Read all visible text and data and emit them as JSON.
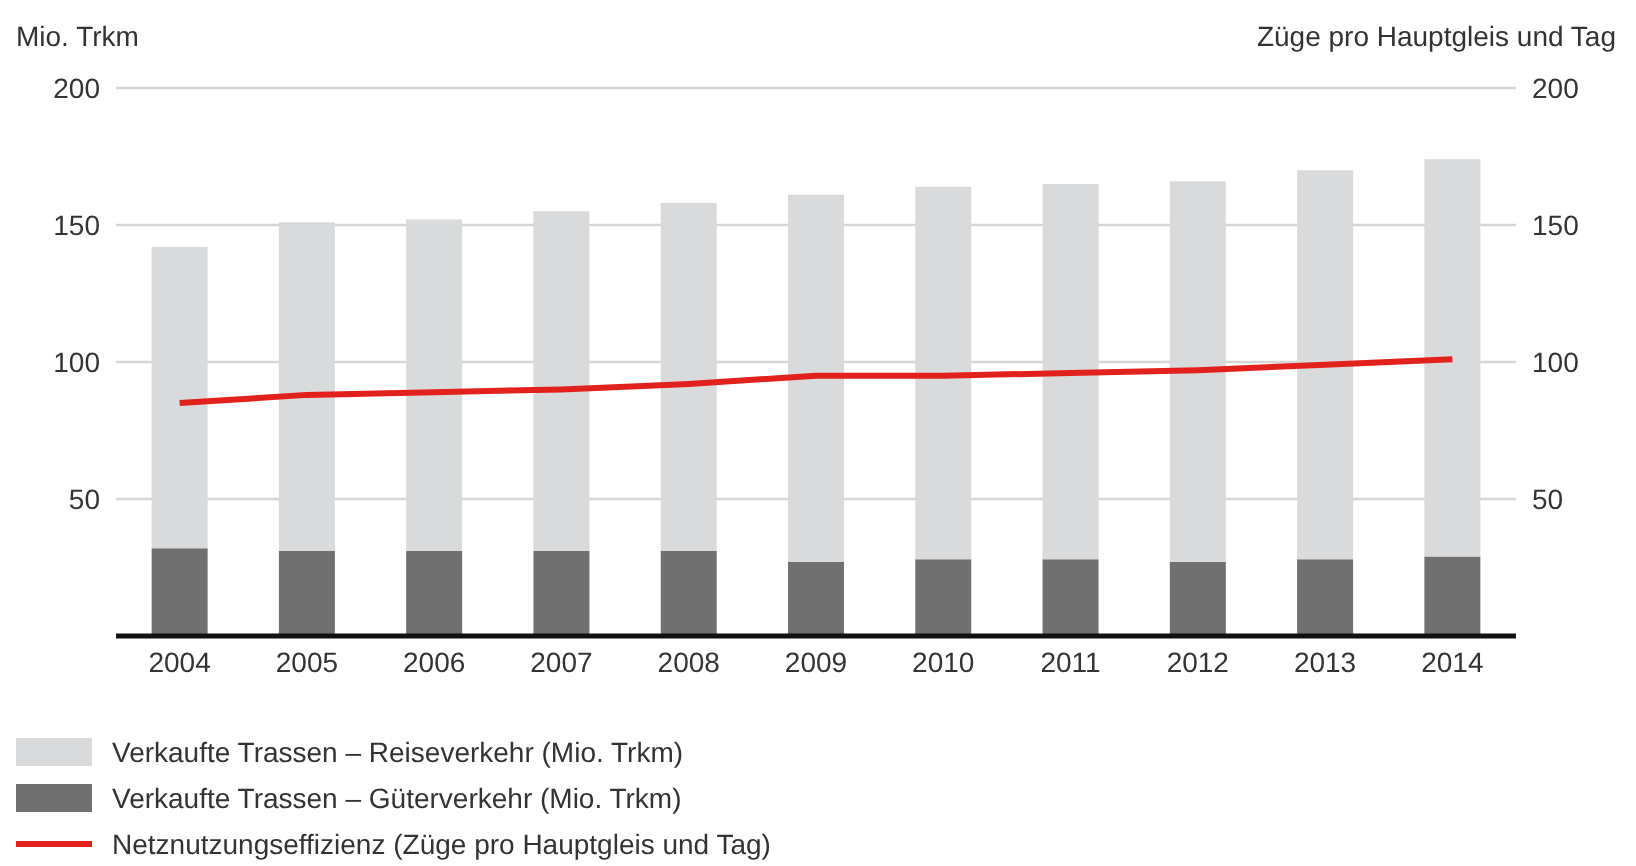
{
  "chart_data": {
    "type": "bar",
    "stacked": true,
    "ylabel": "Mio. Trkm",
    "y2label": "Züge pro Hauptgleis und Tag",
    "categories": [
      "2004",
      "2005",
      "2006",
      "2007",
      "2008",
      "2009",
      "2010",
      "2011",
      "2012",
      "2013",
      "2014"
    ],
    "series": [
      {
        "name": "Verkaufte Trassen – Güterverkehr (Mio. Trkm)",
        "color": "#707070",
        "values": [
          32,
          31,
          31,
          31,
          31,
          27,
          28,
          28,
          27,
          28,
          29
        ]
      },
      {
        "name": "Verkaufte Trassen – Reiseverkehr (Mio. Trkm)",
        "color": "#d9dadb",
        "values": [
          110,
          120,
          121,
          124,
          127,
          134,
          136,
          137,
          139,
          142,
          145
        ]
      },
      {
        "name": "Netznutzungseffizienz (Züge pro Hauptgleis und Tag)",
        "type": "line",
        "axis": "y2",
        "color": "#e3211c",
        "values": [
          85,
          88,
          89,
          90,
          92,
          95,
          95,
          96,
          97,
          99,
          101
        ]
      }
    ],
    "ylim": [
      0,
      200
    ],
    "yticks": [
      50,
      100,
      150,
      200
    ],
    "y2lim": [
      0,
      200
    ],
    "y2ticks": [
      50,
      100,
      150,
      200
    ],
    "grid": "y",
    "legend": "bottom left",
    "marker": "none"
  }
}
